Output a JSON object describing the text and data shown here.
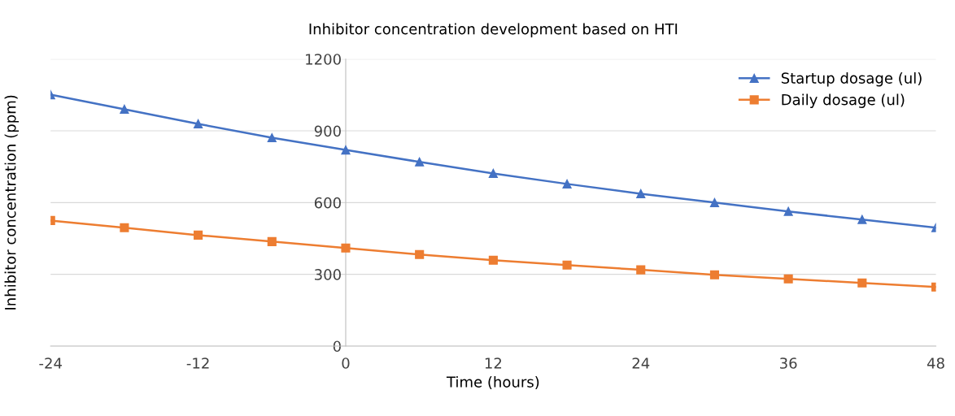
{
  "chart_data": {
    "type": "line",
    "title": "Inhibitor concentration development based on HTI",
    "xlabel": "Time (hours)",
    "ylabel": "Inhibitor concentration (ppm)",
    "x": [
      -24,
      -18,
      -12,
      -6,
      0,
      6,
      12,
      18,
      24,
      30,
      36,
      42,
      48
    ],
    "series": [
      {
        "name": "Startup dosage (ul)",
        "color": "#4472c4",
        "marker": "triangle",
        "values": [
          1051,
          990,
          929,
          871,
          820,
          770,
          722,
          678,
          637,
          600,
          563,
          529,
          495
        ]
      },
      {
        "name": "Daily dosage (ul)",
        "color": "#ed7d31",
        "marker": "square",
        "values": [
          525,
          495,
          464,
          437,
          410,
          383,
          359,
          339,
          319,
          298,
          281,
          264,
          247
        ]
      }
    ],
    "xlim": [
      -24,
      48
    ],
    "xticks": [
      -24,
      -12,
      0,
      12,
      24,
      36,
      48
    ],
    "ylim": [
      0,
      1200
    ],
    "yticks": [
      0,
      300,
      600,
      900,
      1200
    ],
    "grid": "y",
    "legend": "top right",
    "line_style": "solid"
  }
}
